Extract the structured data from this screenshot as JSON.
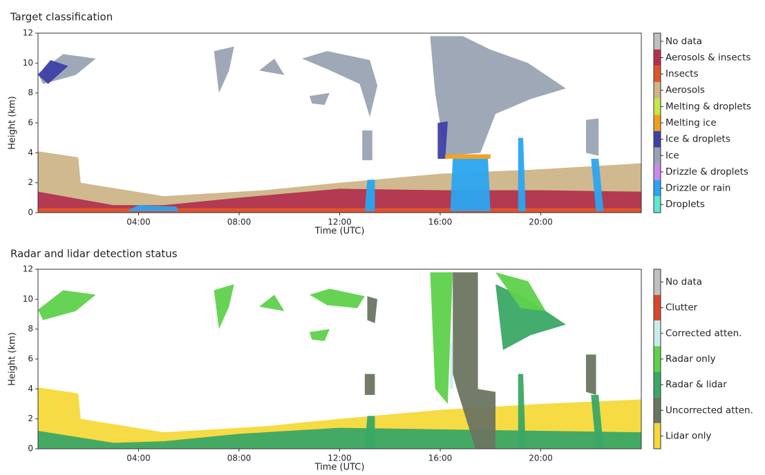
{
  "chart_data": [
    {
      "type": "heatmap",
      "title": "Target classification",
      "xlabel": "Time (UTC)",
      "ylabel": "Height (km)",
      "xlim": [
        0,
        24
      ],
      "xticks": [
        {
          "value": 4,
          "label": "04:00"
        },
        {
          "value": 8,
          "label": "08:00"
        },
        {
          "value": 12,
          "label": "12:00"
        },
        {
          "value": 16,
          "label": "16:00"
        },
        {
          "value": 20,
          "label": "20:00"
        }
      ],
      "ylim": [
        0,
        12
      ],
      "yticks": [
        0,
        2,
        4,
        6,
        8,
        10,
        12
      ],
      "classes": [
        {
          "name": "No data",
          "color": "#c0c0c0"
        },
        {
          "name": "Aerosols & insects",
          "color": "#b2314f"
        },
        {
          "name": "Insects",
          "color": "#e0542c"
        },
        {
          "name": "Aerosols",
          "color": "#cdb588"
        },
        {
          "name": "Melting & droplets",
          "color": "#c5e84a"
        },
        {
          "name": "Melting ice",
          "color": "#f09e1b"
        },
        {
          "name": "Ice & droplets",
          "color": "#3e3fa8"
        },
        {
          "name": "Ice",
          "color": "#99a3b2"
        },
        {
          "name": "Drizzle & droplets",
          "color": "#c98ae8"
        },
        {
          "name": "Drizzle or rain",
          "color": "#2ba5f0"
        },
        {
          "name": "Droplets",
          "color": "#5fe6d3"
        }
      ]
    },
    {
      "type": "heatmap",
      "title": "Radar and lidar detection status",
      "xlabel": "Time (UTC)",
      "ylabel": "Height (km)",
      "xlim": [
        0,
        24
      ],
      "xticks": [
        {
          "value": 4,
          "label": "04:00"
        },
        {
          "value": 8,
          "label": "08:00"
        },
        {
          "value": 12,
          "label": "12:00"
        },
        {
          "value": 16,
          "label": "16:00"
        },
        {
          "value": 20,
          "label": "20:00"
        }
      ],
      "ylim": [
        0,
        12
      ],
      "yticks": [
        0,
        2,
        4,
        6,
        8,
        10,
        12
      ],
      "classes": [
        {
          "name": "No data",
          "color": "#c0c0c0"
        },
        {
          "name": "Clutter",
          "color": "#d9482b"
        },
        {
          "name": "Corrected atten.",
          "color": "#c8ecec"
        },
        {
          "name": "Radar only",
          "color": "#5fd14c"
        },
        {
          "name": "Radar & lidar",
          "color": "#3aa865"
        },
        {
          "name": "Uncorrected atten.",
          "color": "#6b7560"
        },
        {
          "name": "Lidar only",
          "color": "#f5d93a"
        }
      ]
    }
  ]
}
